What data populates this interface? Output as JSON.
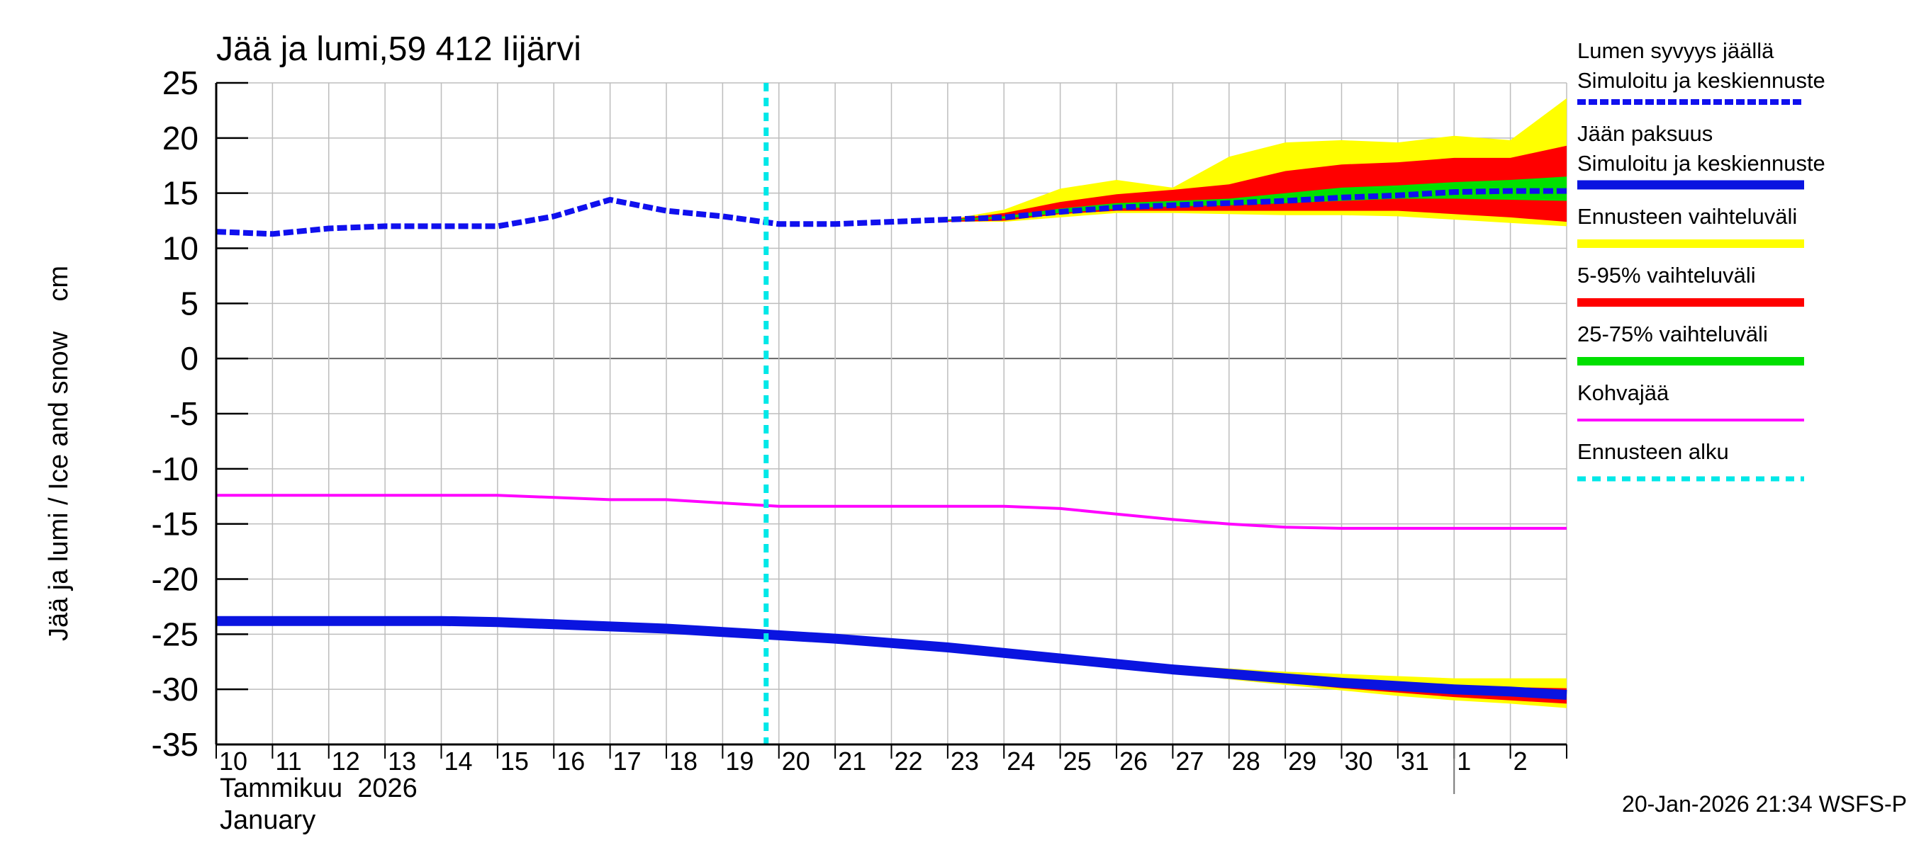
{
  "chart_data": {
    "type": "line",
    "title": "Jää ja lumi,59 412 Iijärvi",
    "ylabel": "Jää ja lumi / Ice and snow    cm",
    "xlabel_fi": "Tammikuu  2026",
    "xlabel_en": "January",
    "timestamp": "20-Jan-2026 21:34 WSFS-P",
    "ylim": [
      -35,
      25
    ],
    "y_ticks": [
      "25",
      "20",
      "15",
      "10",
      "5",
      "0",
      "-5",
      "-10",
      "-15",
      "-20",
      "-25",
      "-30",
      "-35"
    ],
    "x_ticks": [
      "10",
      "11",
      "12",
      "13",
      "14",
      "15",
      "16",
      "17",
      "18",
      "19",
      "20",
      "21",
      "22",
      "23",
      "24",
      "25",
      "26",
      "27",
      "28",
      "29",
      "30",
      "31",
      "1",
      "2"
    ],
    "forecast_start_day": 20,
    "month_boundary_day": 32,
    "grid": true,
    "legend_placement": "right",
    "legend": [
      {
        "line1": "Lumen syvyys jäällä",
        "line2": "Simuloitu ja keskiennuste",
        "color": "#1010ee",
        "style": "dashed"
      },
      {
        "line1": "Jään paksuus",
        "line2": "Simuloitu ja keskiennuste",
        "color": "#0a14e0",
        "style": "solid"
      },
      {
        "line1": "Ennusteen vaihteluväli",
        "line2": "",
        "color": "#ffff00",
        "style": "solid"
      },
      {
        "line1": "5-95% vaihteluväli",
        "line2": "",
        "color": "#ff0000",
        "style": "solid"
      },
      {
        "line1": "25-75% vaihteluväli",
        "line2": "",
        "color": "#00e000",
        "style": "solid"
      },
      {
        "line1": "Kohvajää",
        "line2": "",
        "color": "#ff00ff",
        "style": "solid"
      },
      {
        "line1": "Ennusteen alku",
        "line2": "",
        "color": "#00e8e8",
        "style": "dotted"
      }
    ],
    "colors": {
      "snow": "#1010ee",
      "ice": "#0a14e0",
      "range_full": "#ffff00",
      "range_5_95": "#ff0000",
      "range_25_75": "#00e000",
      "slush": "#ff00ff",
      "forecast_start": "#00e8e8"
    },
    "series": [
      {
        "name": "Lumen syvyys jäällä",
        "x": [
          10,
          11,
          12,
          13,
          14,
          15,
          16,
          17,
          18,
          19,
          20,
          21,
          22,
          23,
          24,
          25,
          26,
          27,
          28,
          29,
          30,
          31,
          32,
          33,
          34
        ],
        "values": [
          11.5,
          11.3,
          11.8,
          12.0,
          12.0,
          12.0,
          12.9,
          14.4,
          13.4,
          12.9,
          12.2,
          12.2,
          12.4,
          12.6,
          12.8,
          13.3,
          13.7,
          13.9,
          14.1,
          14.3,
          14.6,
          14.8,
          15.1,
          15.2,
          15.2
        ]
      },
      {
        "name": "Jään paksuus",
        "x": [
          10,
          11,
          12,
          13,
          14,
          15,
          16,
          17,
          18,
          19,
          20,
          21,
          22,
          23,
          24,
          25,
          26,
          27,
          28,
          29,
          30,
          31,
          32,
          33,
          34
        ],
        "values": [
          -23.8,
          -23.8,
          -23.8,
          -23.8,
          -23.8,
          -23.9,
          -24.1,
          -24.3,
          -24.5,
          -24.8,
          -25.1,
          -25.4,
          -25.8,
          -26.2,
          -26.7,
          -27.2,
          -27.7,
          -28.2,
          -28.6,
          -29.0,
          -29.4,
          -29.7,
          -30.0,
          -30.2,
          -30.5
        ]
      },
      {
        "name": "Kohvajää",
        "x": [
          10,
          11,
          12,
          13,
          14,
          15,
          16,
          17,
          18,
          19,
          20,
          21,
          22,
          23,
          24,
          25,
          26,
          27,
          28,
          29,
          30,
          31,
          32,
          33,
          34
        ],
        "values": [
          -12.4,
          -12.4,
          -12.4,
          -12.4,
          -12.4,
          -12.4,
          -12.6,
          -12.8,
          -12.8,
          -13.1,
          -13.4,
          -13.4,
          -13.4,
          -13.4,
          -13.4,
          -13.6,
          -14.1,
          -14.6,
          -15.0,
          -15.3,
          -15.4,
          -15.4,
          -15.4,
          -15.4,
          -15.4
        ]
      }
    ],
    "snow_bands": {
      "x": [
        23,
        24,
        25,
        26,
        27,
        28,
        29,
        30,
        31,
        32,
        33,
        34
      ],
      "full_upper": [
        12.6,
        13.5,
        15.4,
        16.2,
        15.5,
        18.3,
        19.6,
        19.8,
        19.6,
        20.2,
        19.8,
        23.6
      ],
      "full_lower": [
        12.4,
        12.4,
        12.8,
        13.2,
        13.2,
        13.1,
        13.0,
        13.0,
        12.9,
        12.6,
        12.3,
        12.0
      ],
      "p95": [
        12.6,
        13.2,
        14.2,
        14.9,
        15.3,
        15.8,
        17.0,
        17.6,
        17.8,
        18.2,
        18.2,
        19.3
      ],
      "p5": [
        12.4,
        12.5,
        13.1,
        13.4,
        13.4,
        13.4,
        13.4,
        13.4,
        13.4,
        13.1,
        12.8,
        12.4
      ],
      "p75": [
        12.6,
        12.9,
        13.6,
        14.1,
        14.3,
        14.5,
        15.0,
        15.5,
        15.7,
        16.0,
        16.2,
        16.5
      ],
      "p25": [
        12.5,
        12.7,
        13.2,
        13.6,
        13.8,
        13.9,
        14.1,
        14.3,
        14.5,
        14.5,
        14.4,
        14.3
      ]
    },
    "ice_bands": {
      "x": [
        24,
        25,
        26,
        27,
        28,
        29,
        30,
        31,
        32,
        33,
        34
      ],
      "full_upper": [
        -26.6,
        -27.0,
        -27.4,
        -27.8,
        -28.1,
        -28.4,
        -28.6,
        -28.8,
        -29.0,
        -29.0,
        -29.0
      ],
      "full_lower": [
        -26.8,
        -27.4,
        -27.9,
        -28.5,
        -29.1,
        -29.6,
        -30.1,
        -30.6,
        -31.0,
        -31.3,
        -31.7
      ],
      "p95": [
        -26.6,
        -27.1,
        -27.6,
        -28.1,
        -28.5,
        -28.8,
        -29.1,
        -29.4,
        -29.6,
        -29.8,
        -29.9
      ],
      "p5": [
        -26.8,
        -27.3,
        -27.9,
        -28.4,
        -28.9,
        -29.4,
        -29.9,
        -30.3,
        -30.7,
        -31.0,
        -31.3
      ]
    }
  }
}
